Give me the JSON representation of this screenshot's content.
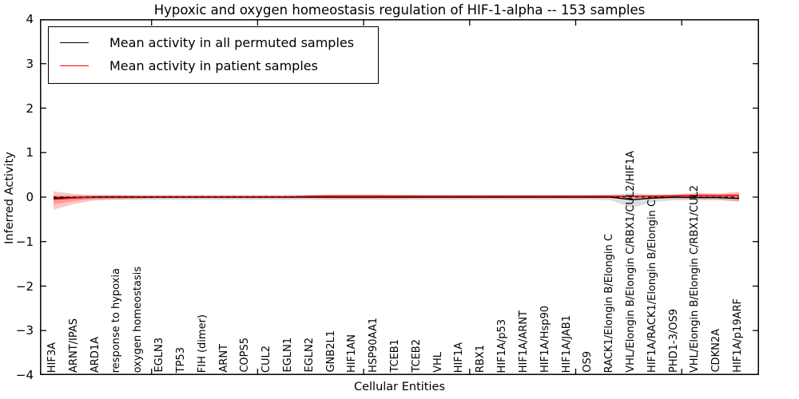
{
  "figure": {
    "background": "#ffffff"
  },
  "chart_data": {
    "type": "line",
    "title": "Hypoxic and oxygen homeostasis regulation of HIF-1-alpha -- 153 samples",
    "xlabel": "Cellular Entities",
    "ylabel": "Inferred Activity",
    "ylim": [
      -4,
      4
    ],
    "yticks": [
      4,
      3,
      2,
      1,
      0,
      -1,
      -2,
      -3,
      -4
    ],
    "ytick_labels": [
      "4",
      "3",
      "2",
      "1",
      "0",
      "−1",
      "−2",
      "−3",
      "−4"
    ],
    "x_numeric_ticks": [
      5,
      10,
      15,
      20,
      25,
      30
    ],
    "grid": false,
    "legend_position": "upper left",
    "zero_line_style": "dashed",
    "categories": [
      "HIF3A",
      "ARNT/IPAS",
      "ARD1A",
      "response to hypoxia",
      "oxygen homeostasis",
      "EGLN3",
      "TP53",
      "FIH (dimer)",
      "ARNT",
      "COPS5",
      "CUL2",
      "EGLN1",
      "EGLN2",
      "GNB2L1",
      "HIF1AN",
      "HSP90AA1",
      "TCEB1",
      "TCEB2",
      "VHL",
      "HIF1A",
      "RBX1",
      "HIF1A/p53",
      "HIF1A/ARNT",
      "HIF1A/Hsp90",
      "HIF1A/JAB1",
      "OS9",
      "RACK1/Elongin B/Elongin C",
      "VHL/Elongin B/Elongin C/RBX1/CUL2/HIF1A",
      "HIF1A/RACK1/Elongin B/Elongin C",
      "PHD1-3/OS9",
      "VHL/Elongin B/Elongin C/RBX1/CUL2",
      "CDKN2A",
      "HIF1A/p19ARF"
    ],
    "series": [
      {
        "name": "Mean activity in all permuted samples",
        "color": "#000000",
        "band_color": "#8c8c8c",
        "band_opacity": 0.3,
        "values": [
          -0.02,
          -0.01,
          0,
          0,
          0,
          0,
          0,
          0,
          0,
          0,
          0,
          0,
          0,
          0,
          0,
          0,
          0,
          0,
          0,
          0,
          0,
          0,
          0,
          0,
          0,
          0,
          0,
          -0.06,
          -0.02,
          0,
          -0.01,
          -0.01,
          -0.03
        ],
        "band_upper": [
          0.02,
          0.04,
          0.05,
          0.05,
          0.05,
          0.05,
          0.05,
          0.05,
          0.05,
          0.05,
          0.05,
          0.05,
          0.05,
          0.05,
          0.05,
          0.05,
          0.05,
          0.05,
          0.05,
          0.05,
          0.05,
          0.05,
          0.05,
          0.05,
          0.05,
          0.05,
          0.06,
          0.09,
          0.06,
          0.05,
          0.05,
          0.06,
          0.06
        ],
        "band_lower": [
          -0.03,
          -0.05,
          -0.06,
          -0.06,
          -0.06,
          -0.06,
          -0.06,
          -0.06,
          -0.06,
          -0.06,
          -0.06,
          -0.06,
          -0.06,
          -0.06,
          -0.06,
          -0.06,
          -0.06,
          -0.06,
          -0.06,
          -0.06,
          -0.06,
          -0.06,
          -0.06,
          -0.06,
          -0.06,
          -0.06,
          -0.07,
          -0.24,
          -0.11,
          -0.07,
          -0.07,
          -0.07,
          -0.1
        ]
      },
      {
        "name": "Mean activity in patient samples",
        "color": "#ff0000",
        "band_color": "#ff0000",
        "band_opacity": 0.22,
        "values": [
          -0.05,
          -0.02,
          0.01,
          0.01,
          0.01,
          0.01,
          0.01,
          0.01,
          0.01,
          0.01,
          0.01,
          0.01,
          0.02,
          0.02,
          0.02,
          0.02,
          0.02,
          0.02,
          0.02,
          0.02,
          0.02,
          0.02,
          0.02,
          0.02,
          0.02,
          0.02,
          0.02,
          0.02,
          0.02,
          0.03,
          0.04,
          0.03,
          0.04
        ],
        "band_upper": [
          0.13,
          0.07,
          0.04,
          0.04,
          0.03,
          0.03,
          0.03,
          0.03,
          0.03,
          0.03,
          0.03,
          0.03,
          0.04,
          0.06,
          0.06,
          0.06,
          0.05,
          0.05,
          0.04,
          0.04,
          0.04,
          0.04,
          0.04,
          0.04,
          0.04,
          0.04,
          0.04,
          0.04,
          0.05,
          0.06,
          0.1,
          0.08,
          0.12
        ],
        "band_lower": [
          -0.28,
          -0.15,
          -0.07,
          -0.05,
          -0.04,
          -0.03,
          -0.03,
          -0.03,
          -0.03,
          -0.03,
          -0.03,
          -0.03,
          -0.03,
          -0.04,
          -0.04,
          -0.04,
          -0.04,
          -0.03,
          -0.03,
          -0.03,
          -0.03,
          -0.03,
          -0.03,
          -0.03,
          -0.03,
          -0.03,
          -0.03,
          -0.03,
          -0.04,
          -0.04,
          -0.05,
          -0.05,
          -0.1
        ]
      }
    ]
  }
}
